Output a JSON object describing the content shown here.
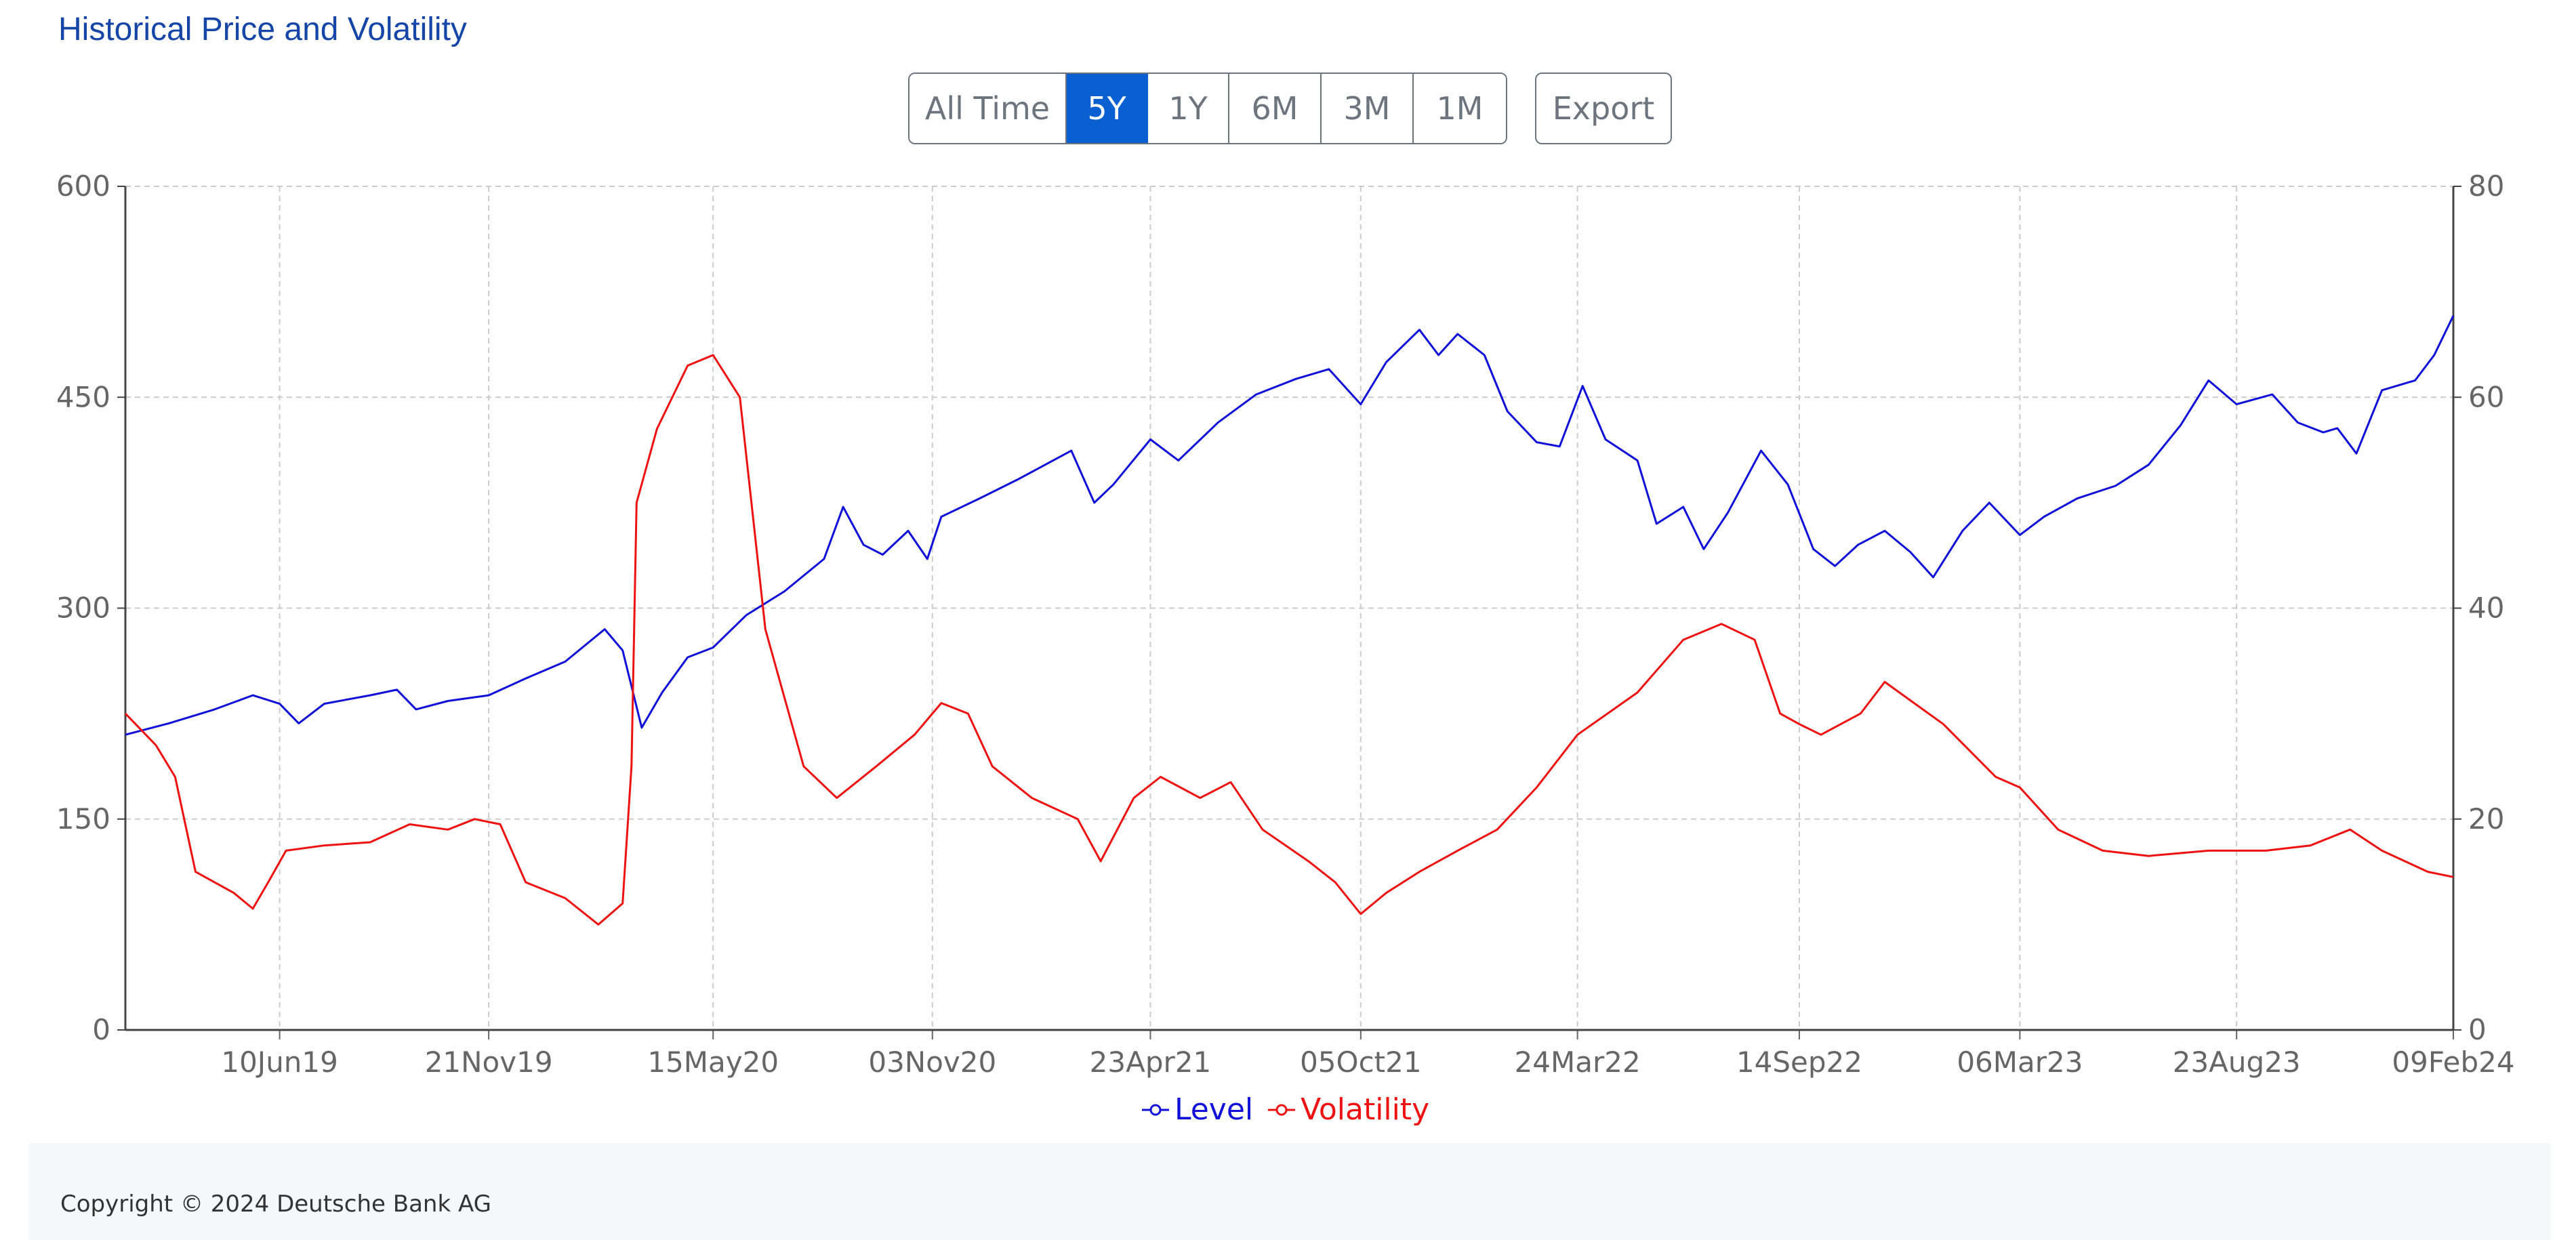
{
  "page": {
    "title": "Historical Price and Volatility"
  },
  "range_buttons": [
    {
      "label": "All Time",
      "active": false
    },
    {
      "label": "5Y",
      "active": true
    },
    {
      "label": "1Y",
      "active": false
    },
    {
      "label": "6M",
      "active": false
    },
    {
      "label": "3M",
      "active": false
    },
    {
      "label": "1M",
      "active": false
    }
  ],
  "export_label": "Export",
  "legend": {
    "level_label": "Level",
    "volatility_label": "Volatility"
  },
  "footer": {
    "copyright": "Copyright © 2024 Deutsche Bank AG"
  },
  "colors": {
    "level": "#1010d8",
    "volatility": "#ee1111",
    "active_button": "#0a5fd1",
    "title": "#1645a8"
  },
  "chart_data": {
    "type": "line",
    "title": "Historical Price and Volatility",
    "x_ticks": [
      "10Jun19",
      "21Nov19",
      "15May20",
      "03Nov20",
      "23Apr21",
      "05Oct21",
      "24Mar22",
      "14Sep22",
      "06Mar23",
      "23Aug23",
      "09Feb24"
    ],
    "x_range": [
      "2019-02-09",
      "2024-02-09"
    ],
    "y_left": {
      "range": [
        0,
        600
      ],
      "ticks": [
        0,
        150,
        300,
        450,
        600
      ]
    },
    "y_right": {
      "range": [
        0,
        80
      ],
      "ticks": [
        0,
        20,
        40,
        60,
        80
      ]
    },
    "grid": true,
    "legend_position": "bottom-center",
    "series": [
      {
        "name": "Level",
        "axis": "left",
        "color": "#1010d8",
        "points": [
          [
            "2019-02-09",
            210
          ],
          [
            "2019-03-15",
            218
          ],
          [
            "2019-04-20",
            228
          ],
          [
            "2019-05-20",
            238
          ],
          [
            "2019-06-10",
            232
          ],
          [
            "2019-06-25",
            218
          ],
          [
            "2019-07-15",
            232
          ],
          [
            "2019-08-20",
            238
          ],
          [
            "2019-09-10",
            242
          ],
          [
            "2019-09-25",
            228
          ],
          [
            "2019-10-20",
            234
          ],
          [
            "2019-11-21",
            238
          ],
          [
            "2019-12-20",
            250
          ],
          [
            "2020-01-20",
            262
          ],
          [
            "2020-02-20",
            285
          ],
          [
            "2020-03-05",
            270
          ],
          [
            "2020-03-20",
            215
          ],
          [
            "2020-04-05",
            240
          ],
          [
            "2020-04-25",
            265
          ],
          [
            "2020-05-15",
            272
          ],
          [
            "2020-06-10",
            295
          ],
          [
            "2020-07-10",
            312
          ],
          [
            "2020-08-10",
            335
          ],
          [
            "2020-08-25",
            372
          ],
          [
            "2020-09-10",
            345
          ],
          [
            "2020-09-25",
            338
          ],
          [
            "2020-10-15",
            355
          ],
          [
            "2020-10-30",
            335
          ],
          [
            "2020-11-10",
            365
          ],
          [
            "2020-12-10",
            378
          ],
          [
            "2021-01-10",
            392
          ],
          [
            "2021-02-20",
            412
          ],
          [
            "2021-03-10",
            375
          ],
          [
            "2021-03-25",
            388
          ],
          [
            "2021-04-23",
            420
          ],
          [
            "2021-05-15",
            405
          ],
          [
            "2021-06-15",
            432
          ],
          [
            "2021-07-15",
            452
          ],
          [
            "2021-08-15",
            463
          ],
          [
            "2021-09-10",
            470
          ],
          [
            "2021-10-05",
            445
          ],
          [
            "2021-10-25",
            475
          ],
          [
            "2021-11-20",
            498
          ],
          [
            "2021-12-05",
            480
          ],
          [
            "2021-12-20",
            495
          ],
          [
            "2022-01-10",
            480
          ],
          [
            "2022-01-28",
            440
          ],
          [
            "2022-02-20",
            418
          ],
          [
            "2022-03-10",
            415
          ],
          [
            "2022-03-28",
            458
          ],
          [
            "2022-04-15",
            420
          ],
          [
            "2022-05-10",
            405
          ],
          [
            "2022-05-25",
            360
          ],
          [
            "2022-06-15",
            372
          ],
          [
            "2022-07-01",
            342
          ],
          [
            "2022-07-20",
            368
          ],
          [
            "2022-08-15",
            412
          ],
          [
            "2022-09-05",
            388
          ],
          [
            "2022-09-25",
            342
          ],
          [
            "2022-10-12",
            330
          ],
          [
            "2022-10-30",
            345
          ],
          [
            "2022-11-20",
            355
          ],
          [
            "2022-12-10",
            340
          ],
          [
            "2022-12-28",
            322
          ],
          [
            "2023-01-20",
            355
          ],
          [
            "2023-02-10",
            375
          ],
          [
            "2023-03-06",
            352
          ],
          [
            "2023-03-25",
            365
          ],
          [
            "2023-04-20",
            378
          ],
          [
            "2023-05-20",
            387
          ],
          [
            "2023-06-15",
            402
          ],
          [
            "2023-07-10",
            430
          ],
          [
            "2023-08-01",
            462
          ],
          [
            "2023-08-23",
            445
          ],
          [
            "2023-09-20",
            452
          ],
          [
            "2023-10-10",
            432
          ],
          [
            "2023-10-30",
            425
          ],
          [
            "2023-11-10",
            428
          ],
          [
            "2023-11-25",
            410
          ],
          [
            "2023-12-15",
            455
          ],
          [
            "2024-01-10",
            462
          ],
          [
            "2024-01-25",
            480
          ],
          [
            "2024-02-09",
            508
          ]
        ]
      },
      {
        "name": "Volatility",
        "axis": "right",
        "color": "#ee1111",
        "points": [
          [
            "2019-02-09",
            30
          ],
          [
            "2019-03-05",
            27
          ],
          [
            "2019-03-20",
            24
          ],
          [
            "2019-04-05",
            15
          ],
          [
            "2019-05-05",
            13
          ],
          [
            "2019-05-20",
            11.5
          ],
          [
            "2019-06-01",
            14
          ],
          [
            "2019-06-15",
            17
          ],
          [
            "2019-07-15",
            17.5
          ],
          [
            "2019-08-20",
            17.8
          ],
          [
            "2019-09-20",
            19.5
          ],
          [
            "2019-10-20",
            19
          ],
          [
            "2019-11-10",
            20
          ],
          [
            "2019-11-30",
            19.5
          ],
          [
            "2019-12-20",
            14
          ],
          [
            "2020-01-20",
            12.5
          ],
          [
            "2020-02-15",
            10
          ],
          [
            "2020-03-05",
            12
          ],
          [
            "2020-03-12",
            25
          ],
          [
            "2020-03-16",
            50
          ],
          [
            "2020-04-01",
            57
          ],
          [
            "2020-04-25",
            63
          ],
          [
            "2020-05-15",
            64
          ],
          [
            "2020-06-05",
            60
          ],
          [
            "2020-06-25",
            38
          ],
          [
            "2020-07-25",
            25
          ],
          [
            "2020-08-20",
            22
          ],
          [
            "2020-09-20",
            25
          ],
          [
            "2020-10-20",
            28
          ],
          [
            "2020-11-10",
            31
          ],
          [
            "2020-12-01",
            30
          ],
          [
            "2020-12-20",
            25
          ],
          [
            "2021-01-20",
            22
          ],
          [
            "2021-02-25",
            20
          ],
          [
            "2021-03-15",
            16
          ],
          [
            "2021-04-10",
            22
          ],
          [
            "2021-05-01",
            24
          ],
          [
            "2021-06-01",
            22
          ],
          [
            "2021-06-25",
            23.5
          ],
          [
            "2021-07-20",
            19
          ],
          [
            "2021-08-25",
            16
          ],
          [
            "2021-09-15",
            14
          ],
          [
            "2021-10-05",
            11
          ],
          [
            "2021-10-25",
            13
          ],
          [
            "2021-11-20",
            15
          ],
          [
            "2021-12-20",
            17
          ],
          [
            "2022-01-20",
            19
          ],
          [
            "2022-02-20",
            23
          ],
          [
            "2022-03-24",
            28
          ],
          [
            "2022-05-10",
            32
          ],
          [
            "2022-06-15",
            37
          ],
          [
            "2022-07-15",
            38.5
          ],
          [
            "2022-08-10",
            37
          ],
          [
            "2022-08-30",
            30
          ],
          [
            "2022-09-14",
            29
          ],
          [
            "2022-10-01",
            28
          ],
          [
            "2022-11-01",
            30
          ],
          [
            "2022-11-20",
            33
          ],
          [
            "2023-01-05",
            29
          ],
          [
            "2023-02-15",
            24
          ],
          [
            "2023-03-06",
            23
          ],
          [
            "2023-04-05",
            19
          ],
          [
            "2023-05-10",
            17
          ],
          [
            "2023-06-15",
            16.5
          ],
          [
            "2023-08-01",
            17
          ],
          [
            "2023-09-15",
            17
          ],
          [
            "2023-10-20",
            17.5
          ],
          [
            "2023-11-20",
            19
          ],
          [
            "2023-12-15",
            17
          ],
          [
            "2024-01-20",
            15
          ],
          [
            "2024-02-09",
            14.5
          ]
        ]
      }
    ]
  }
}
